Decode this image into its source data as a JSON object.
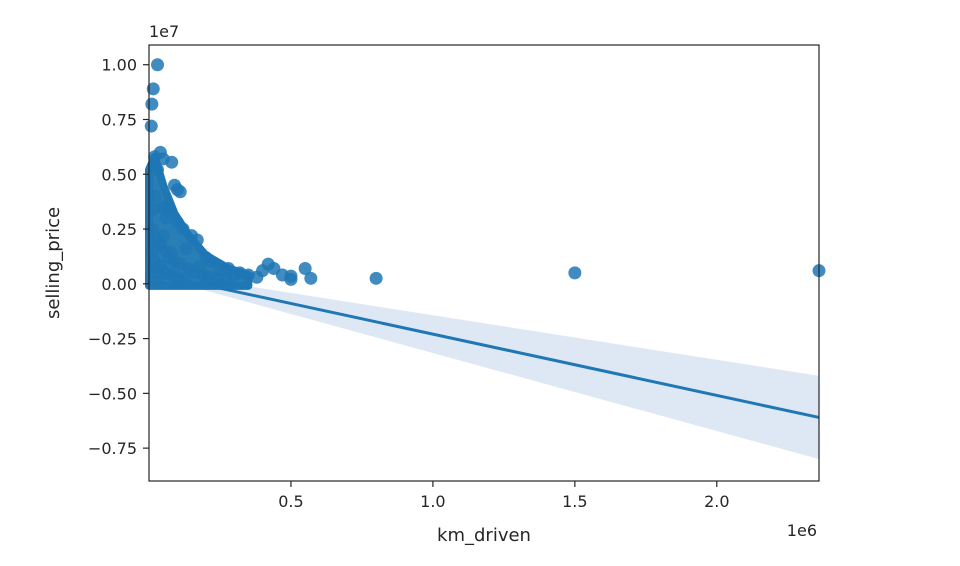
{
  "chart_data": {
    "type": "scatter",
    "title": "",
    "xlabel": "km_driven",
    "ylabel": "selling_price",
    "x_offset_label": "1e6",
    "y_offset_label": "1e7",
    "xlim": [
      0.0,
      2.36
    ],
    "ylim": [
      -0.9,
      1.09
    ],
    "xticks": [
      {
        "value": 0.5,
        "label": "0.5"
      },
      {
        "value": 1.0,
        "label": "1.0"
      },
      {
        "value": 1.5,
        "label": "1.5"
      },
      {
        "value": 2.0,
        "label": "2.0"
      }
    ],
    "yticks": [
      {
        "value": 1.0,
        "label": "1.00"
      },
      {
        "value": 0.75,
        "label": "0.75"
      },
      {
        "value": 0.5,
        "label": "0.50"
      },
      {
        "value": 0.25,
        "label": "0.25"
      },
      {
        "value": 0.0,
        "label": "0.00"
      },
      {
        "value": -0.25,
        "label": "−0.25"
      },
      {
        "value": -0.5,
        "label": "−0.50"
      },
      {
        "value": -0.75,
        "label": "−0.75"
      }
    ],
    "grid": false,
    "color": "#1f77b4",
    "series": [
      {
        "points": [
          [
            0.03,
            1.0
          ],
          [
            0.015,
            0.89
          ],
          [
            0.01,
            0.82
          ],
          [
            0.008,
            0.72
          ],
          [
            0.02,
            0.58
          ],
          [
            0.04,
            0.6
          ],
          [
            0.05,
            0.57
          ],
          [
            0.08,
            0.555
          ],
          [
            0.03,
            0.52
          ],
          [
            0.09,
            0.45
          ],
          [
            0.1,
            0.43
          ],
          [
            0.11,
            0.42
          ],
          [
            0.07,
            0.35
          ],
          [
            0.02,
            0.34
          ],
          [
            0.06,
            0.3
          ],
          [
            0.1,
            0.28
          ],
          [
            0.12,
            0.25
          ],
          [
            0.15,
            0.22
          ],
          [
            0.17,
            0.2
          ],
          [
            0.13,
            0.16
          ],
          [
            0.08,
            0.14
          ],
          [
            0.2,
            0.12
          ],
          [
            0.22,
            0.1
          ],
          [
            0.18,
            0.08
          ],
          [
            0.25,
            0.06
          ],
          [
            0.28,
            0.07
          ],
          [
            0.3,
            0.04
          ],
          [
            0.32,
            0.05
          ],
          [
            0.35,
            0.04
          ],
          [
            0.38,
            0.03
          ],
          [
            0.4,
            0.06
          ],
          [
            0.42,
            0.09
          ],
          [
            0.44,
            0.07
          ],
          [
            0.47,
            0.04
          ],
          [
            0.5,
            0.035
          ],
          [
            0.55,
            0.07
          ],
          [
            0.57,
            0.025
          ],
          [
            0.5,
            0.02
          ],
          [
            0.8,
            0.025
          ],
          [
            1.5,
            0.05
          ],
          [
            2.36,
            0.06
          ],
          [
            0.03,
            0.2
          ],
          [
            0.04,
            0.18
          ],
          [
            0.05,
            0.22
          ],
          [
            0.06,
            0.15
          ],
          [
            0.07,
            0.12
          ],
          [
            0.09,
            0.1
          ],
          [
            0.11,
            0.09
          ],
          [
            0.14,
            0.07
          ],
          [
            0.16,
            0.05
          ],
          [
            0.19,
            0.04
          ],
          [
            0.21,
            0.03
          ],
          [
            0.24,
            0.02
          ],
          [
            0.27,
            0.02
          ],
          [
            0.02,
            0.1
          ],
          [
            0.04,
            0.08
          ],
          [
            0.06,
            0.05
          ],
          [
            0.08,
            0.04
          ],
          [
            0.1,
            0.03
          ],
          [
            0.12,
            0.02
          ],
          [
            0.02,
            0.4
          ],
          [
            0.05,
            0.35
          ],
          [
            0.01,
            0.25
          ],
          [
            0.015,
            0.15
          ],
          [
            0.025,
            0.05
          ],
          [
            0.035,
            0.02
          ]
        ]
      }
    ],
    "regression": {
      "x": [
        0.0,
        2.36
      ],
      "y": [
        0.05,
        -0.61
      ],
      "ci_low": [
        0.04,
        -0.8
      ],
      "ci_high": [
        0.06,
        -0.42
      ]
    }
  }
}
